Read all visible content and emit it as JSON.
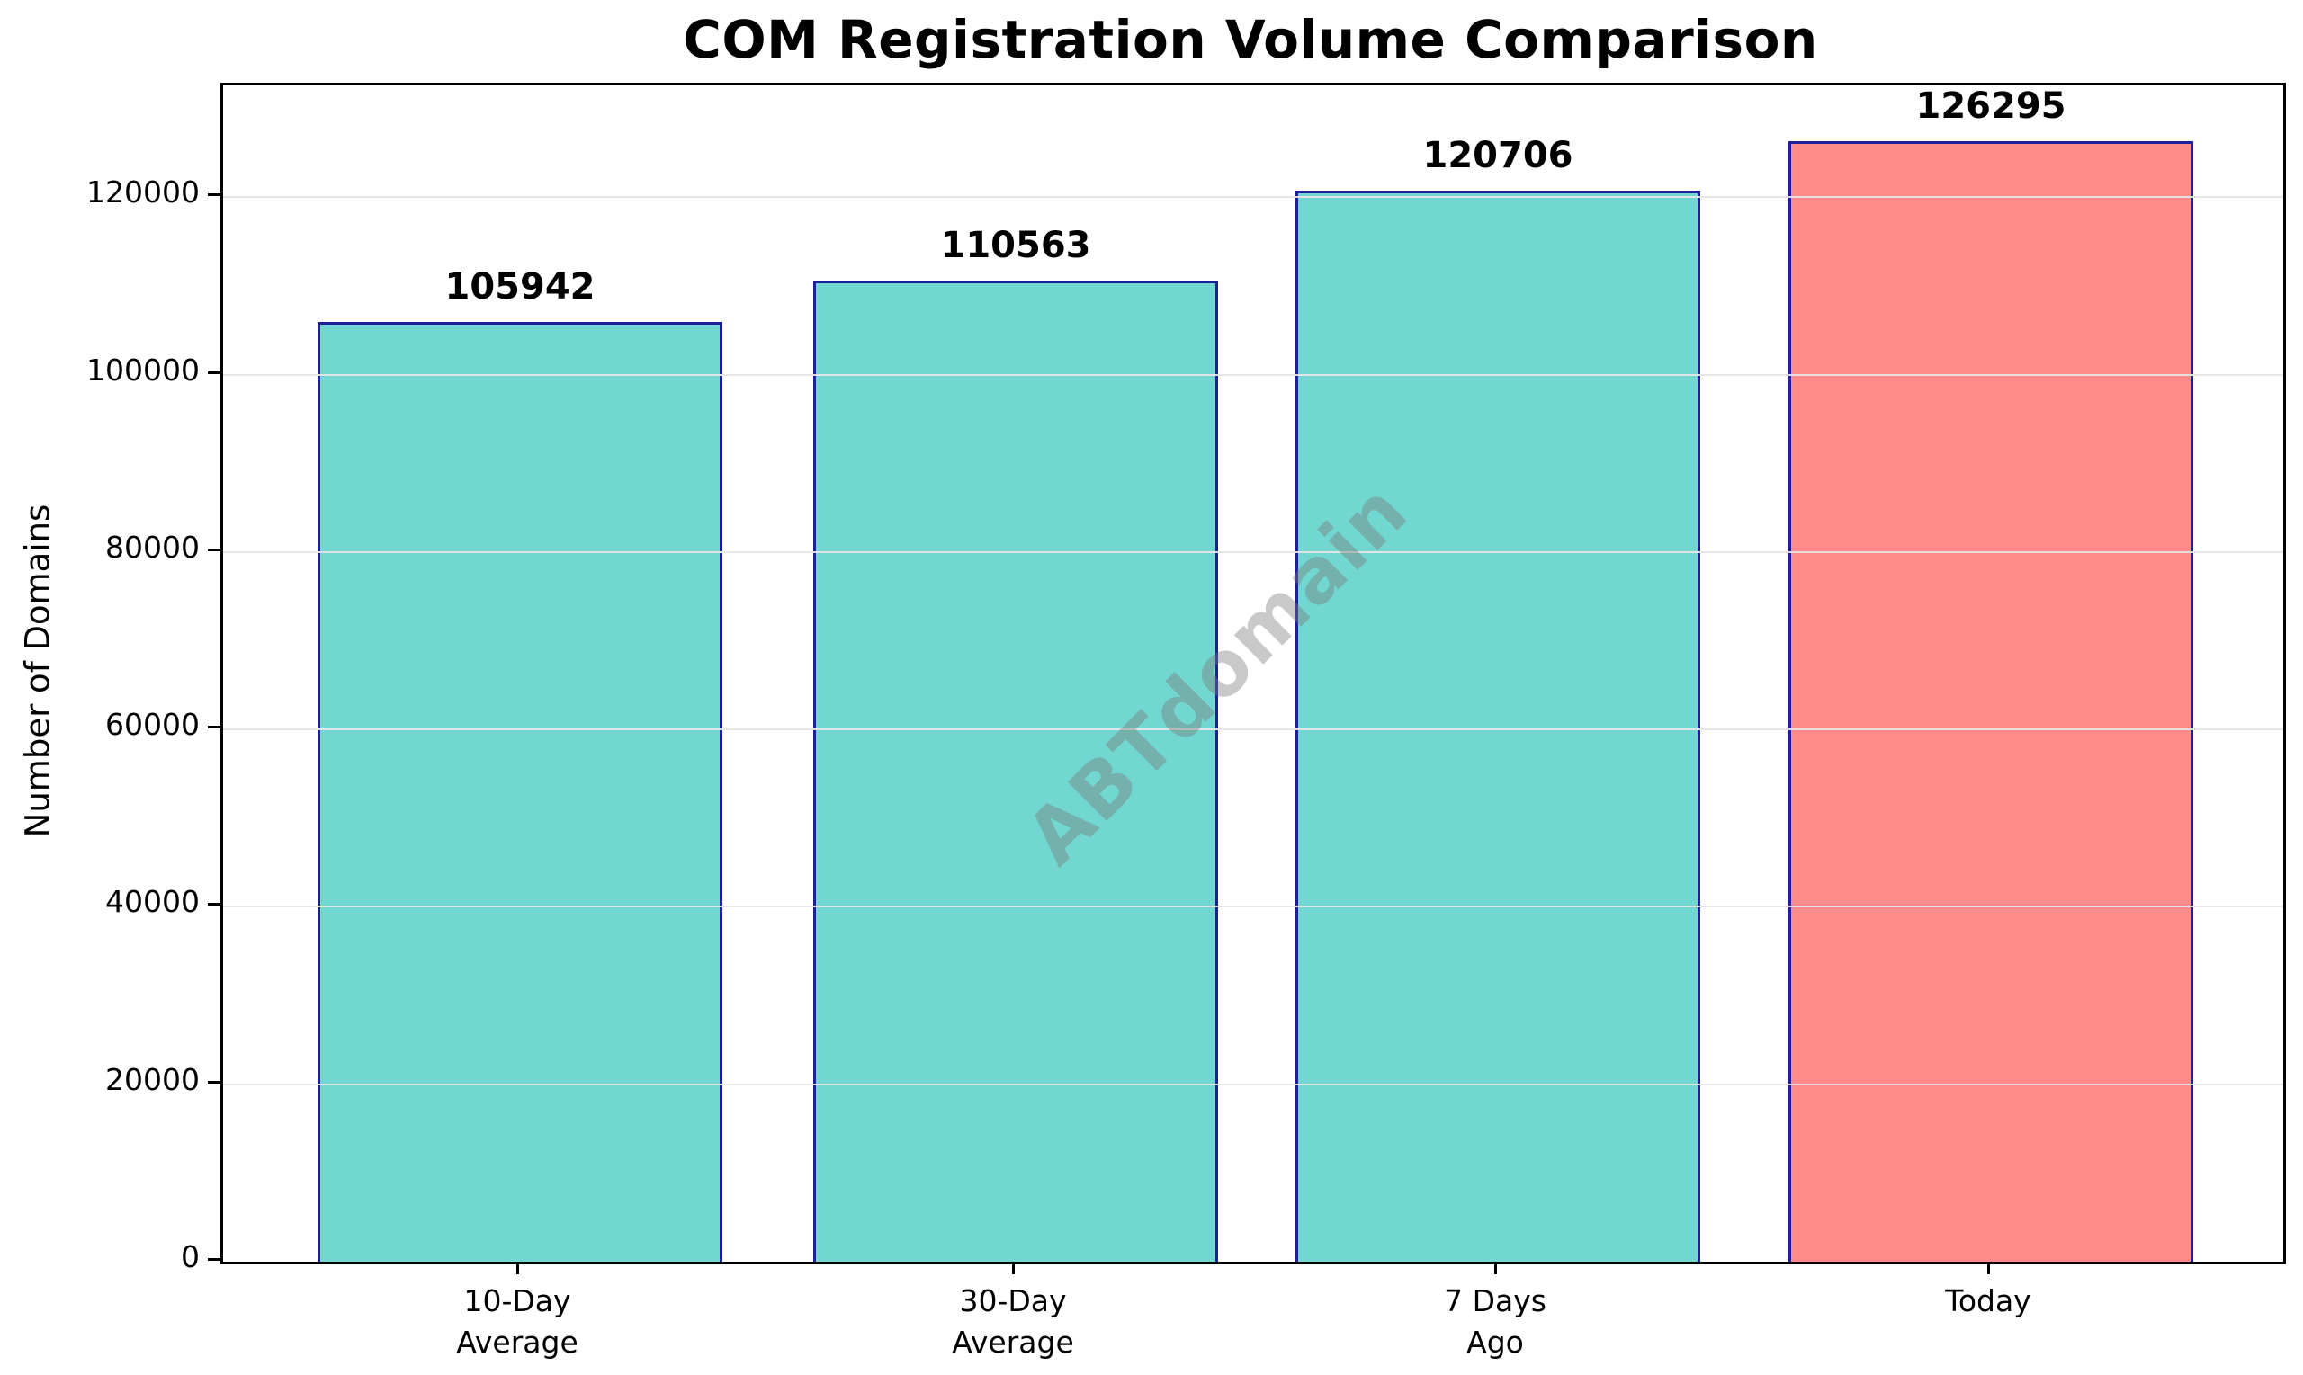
{
  "chart_data": {
    "type": "bar",
    "title": "COM Registration Volume Comparison",
    "xlabel": "",
    "ylabel": "Number of Domains",
    "categories": [
      "10-Day\nAverage",
      "30-Day\nAverage",
      "7 Days\nAgo",
      "Today"
    ],
    "values": [
      105942,
      110563,
      120706,
      126295
    ],
    "bar_labels": [
      "105942",
      "110563",
      "120706",
      "126295"
    ],
    "bar_fill_colors": [
      "#71d7d0",
      "#71d7d0",
      "#71d7d0",
      "#ff8a8a"
    ],
    "bar_edge_color": "#1f1f9c",
    "yticks": [
      0,
      20000,
      40000,
      60000,
      80000,
      100000,
      120000
    ],
    "ylim": [
      0,
      132600
    ],
    "grid": true,
    "grid_color": "#e5e5e5",
    "legend_position": "none",
    "watermark": "ABTdomain",
    "accent_colors": {
      "teal": "#71d7d0",
      "salmon": "#ff8a8a",
      "edge_navy": "#1f1f9c"
    }
  }
}
